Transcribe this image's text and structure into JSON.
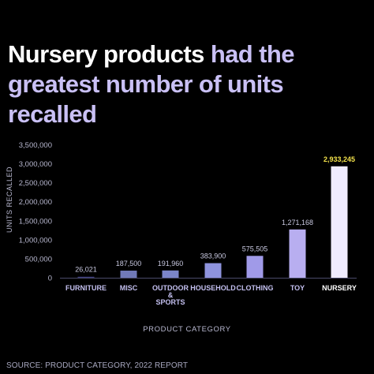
{
  "title": {
    "part1": "Nursery products",
    "part2": " had the greatest number of units recalled"
  },
  "colors": {
    "background": "#000000",
    "title_white": "#ffffff",
    "title_accent": "#c9c0f5",
    "axis_text": "#b8b8d0",
    "value_label": "#c8c8e0",
    "highlight_label": "#f2e14a"
  },
  "chart_data": {
    "type": "bar",
    "categories": [
      "FURNITURE",
      "MISC",
      "OUTDOOR & SPORTS",
      "HOUSEHOLD",
      "CLOTHING",
      "TOY",
      "NURSERY"
    ],
    "category_lines": [
      [
        "FURNITURE"
      ],
      [
        "MISC"
      ],
      [
        "OUTDOOR",
        "&",
        "SPORTS"
      ],
      [
        "HOUSEHOLD"
      ],
      [
        "CLOTHING"
      ],
      [
        "TOY"
      ],
      [
        "NURSERY"
      ]
    ],
    "values": [
      26021,
      187500,
      191960,
      383900,
      575505,
      1271168,
      2933245
    ],
    "value_labels": [
      "26,021",
      "187,500",
      "191,960",
      "383,900",
      "575,505",
      "1,271,168",
      "2,933,245"
    ],
    "bar_colors": [
      "#3d3d7d",
      "#7079b8",
      "#7b85c9",
      "#8e93dd",
      "#a09ae8",
      "#b8aef0",
      "#f0ecff"
    ],
    "xlabel": "PRODUCT CATEGORY",
    "ylabel": "UNITS RECALLED",
    "ylim": [
      0,
      3500000
    ],
    "yticks": [
      0,
      500000,
      1000000,
      1500000,
      2000000,
      2500000,
      3000000,
      3500000
    ],
    "ytick_labels": [
      "0",
      "500,000",
      "1,000,000",
      "1,500,000",
      "2,000,000",
      "2,500,000",
      "3,000,000",
      "3,500,000"
    ],
    "highlight_index": 6,
    "grid": false
  },
  "source": "SOURCE: PRODUCT CATEGORY, 2022 REPORT"
}
